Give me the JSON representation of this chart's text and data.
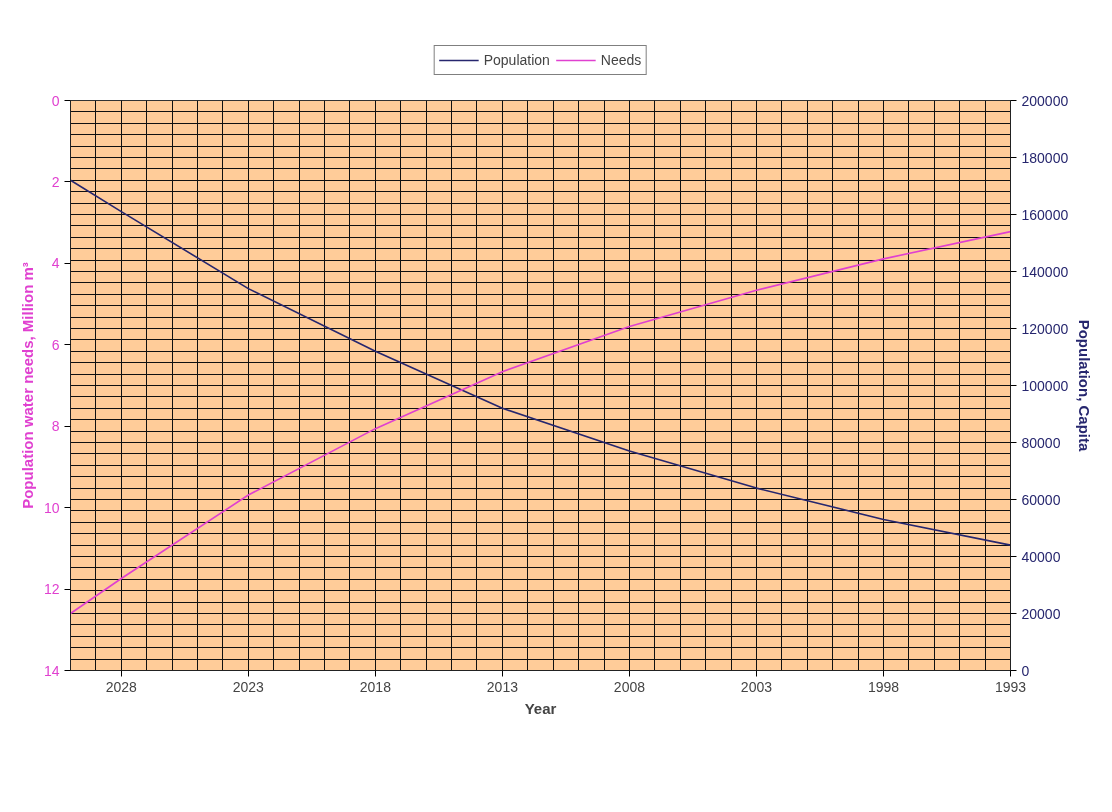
{
  "chart_data": {
    "type": "line",
    "xlabel": "Year",
    "ylabel": "Population water needs, Million m³",
    "y2label": "Population, Capita",
    "x": [
      2030,
      2028,
      2023,
      2018,
      2013,
      2008,
      2003,
      1998,
      1993
    ],
    "series": [
      {
        "name": "Population",
        "color": "#26266e",
        "axis": "y2",
        "values": [
          172000,
          161000,
          134000,
          112000,
          92000,
          77000,
          64000,
          53000,
          44000
        ]
      },
      {
        "name": "Needs",
        "color": "#e040d0",
        "values": [
          12.6,
          11.74,
          9.69,
          8.06,
          6.66,
          5.55,
          4.66,
          3.89,
          3.22
        ]
      }
    ],
    "xlim": [
      2030,
      1993
    ],
    "xticks": [
      2028,
      2023,
      2018,
      2013,
      2008,
      2003,
      1998,
      1993
    ],
    "ylim": [
      14,
      0
    ],
    "yticks": [
      0,
      2,
      4,
      6,
      8,
      10,
      12,
      14
    ],
    "y2lim": [
      0,
      200000
    ],
    "y2ticks": [
      0,
      20000,
      40000,
      60000,
      80000,
      100000,
      120000,
      140000,
      160000,
      180000,
      200000
    ],
    "grid": true,
    "legend": "top",
    "marker": "none",
    "line_style": "solid"
  }
}
